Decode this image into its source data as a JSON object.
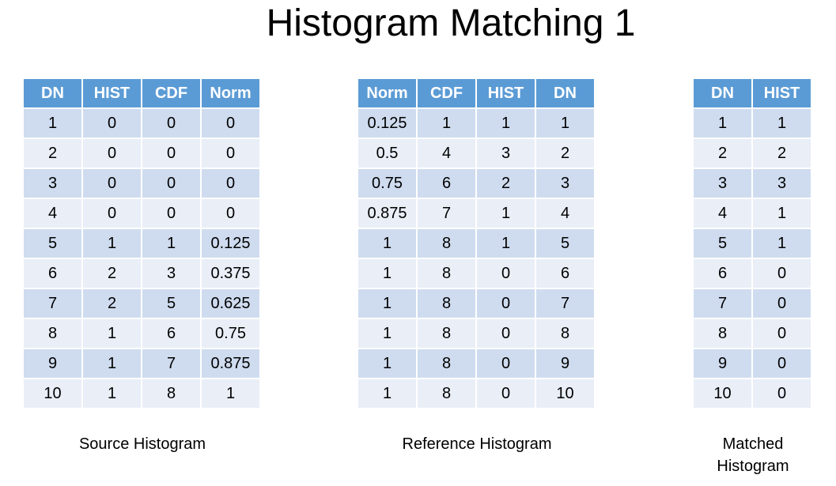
{
  "title": "Histogram Matching 1",
  "tables": [
    {
      "id": "source",
      "caption": "Source Histogram",
      "headers": [
        "DN",
        "HIST",
        "CDF",
        "Norm"
      ],
      "rows": [
        [
          "1",
          "0",
          "0",
          "0"
        ],
        [
          "2",
          "0",
          "0",
          "0"
        ],
        [
          "3",
          "0",
          "0",
          "0"
        ],
        [
          "4",
          "0",
          "0",
          "0"
        ],
        [
          "5",
          "1",
          "1",
          "0.125"
        ],
        [
          "6",
          "2",
          "3",
          "0.375"
        ],
        [
          "7",
          "2",
          "5",
          "0.625"
        ],
        [
          "8",
          "1",
          "6",
          "0.75"
        ],
        [
          "9",
          "1",
          "7",
          "0.875"
        ],
        [
          "10",
          "1",
          "8",
          "1"
        ]
      ]
    },
    {
      "id": "reference",
      "caption": "Reference Histogram",
      "headers": [
        "Norm",
        "CDF",
        "HIST",
        "DN"
      ],
      "rows": [
        [
          "0.125",
          "1",
          "1",
          "1"
        ],
        [
          "0.5",
          "4",
          "3",
          "2"
        ],
        [
          "0.75",
          "6",
          "2",
          "3"
        ],
        [
          "0.875",
          "7",
          "1",
          "4"
        ],
        [
          "1",
          "8",
          "1",
          "5"
        ],
        [
          "1",
          "8",
          "0",
          "6"
        ],
        [
          "1",
          "8",
          "0",
          "7"
        ],
        [
          "1",
          "8",
          "0",
          "8"
        ],
        [
          "1",
          "8",
          "0",
          "9"
        ],
        [
          "1",
          "8",
          "0",
          "10"
        ]
      ]
    },
    {
      "id": "matched",
      "caption_lines": [
        "Matched",
        "Histogram"
      ],
      "headers": [
        "DN",
        "HIST"
      ],
      "rows": [
        [
          "1",
          "1"
        ],
        [
          "2",
          "2"
        ],
        [
          "3",
          "3"
        ],
        [
          "4",
          "1"
        ],
        [
          "5",
          "1"
        ],
        [
          "6",
          "0"
        ],
        [
          "7",
          "0"
        ],
        [
          "8",
          "0"
        ],
        [
          "9",
          "0"
        ],
        [
          "10",
          "0"
        ]
      ]
    }
  ]
}
